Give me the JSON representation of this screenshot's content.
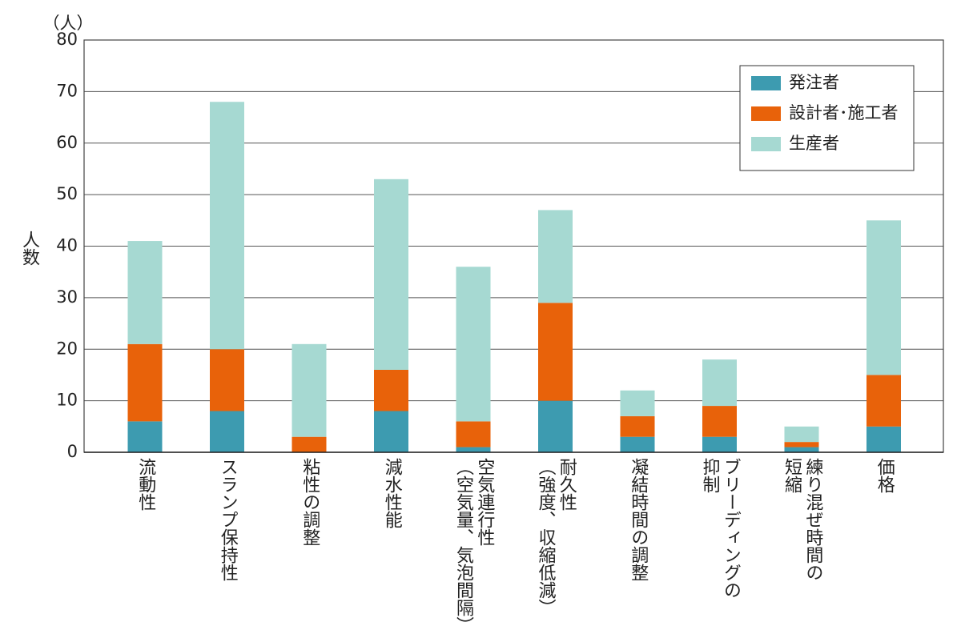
{
  "chart_data": {
    "type": "stacked_bar",
    "y_label": "人数",
    "y_unit": "（人）",
    "categories": [
      "流動性",
      "スランプ保持性",
      "粘性の調整",
      "減水性能",
      "空気連行性\n（空気量、気泡間隔）",
      "耐久性\n（強度、収縮低減）",
      "凝結時間の調整",
      "ブリーディングの\n抑制",
      "練り混ぜ時間の\n短縮",
      "価格"
    ],
    "series": [
      {
        "name": "発注者",
        "color": "#3d9bb0",
        "values": [
          6,
          8,
          0,
          8,
          1,
          10,
          3,
          3,
          1,
          5
        ]
      },
      {
        "name": "設計者･施工者",
        "color": "#e8620a",
        "values": [
          15,
          12,
          3,
          8,
          5,
          19,
          4,
          6,
          1,
          10
        ]
      },
      {
        "name": "生産者",
        "color": "#a6d9d2",
        "values": [
          20,
          48,
          18,
          37,
          30,
          18,
          5,
          9,
          3,
          30
        ]
      }
    ],
    "ylim": [
      0,
      80
    ],
    "yticks": [
      0,
      10,
      20,
      30,
      40,
      50,
      60,
      70,
      80
    ],
    "grid": true,
    "legend": "upper right"
  }
}
